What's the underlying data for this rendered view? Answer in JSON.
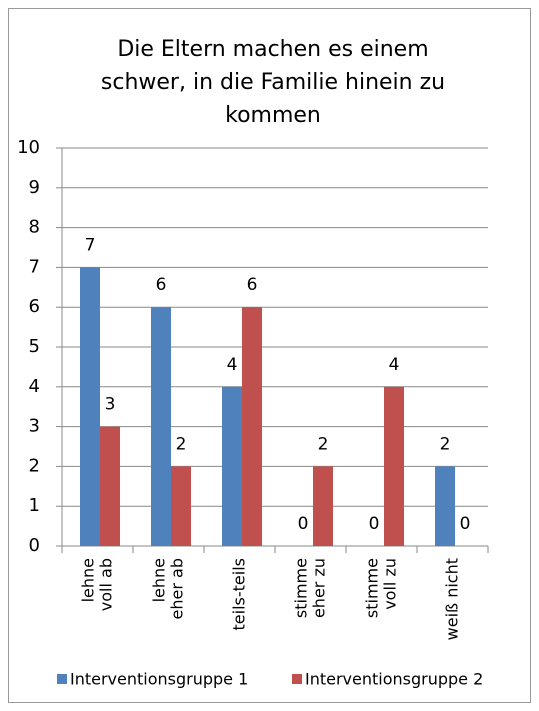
{
  "chart_data": {
    "type": "bar",
    "title": "Die Eltern machen es einem schwer, in die Familie hinein zu kommen",
    "categories": [
      "lehne voll ab",
      "lehne eher ab",
      "teils-teils",
      "stimme eher zu",
      "stimme voll zu",
      "weiß nicht"
    ],
    "series": [
      {
        "name": "Interventionsgruppe 1",
        "color": "#4f81bd",
        "values": [
          7,
          6,
          4,
          0,
          0,
          2
        ]
      },
      {
        "name": "Interventionsgruppe 2",
        "color": "#c0504d",
        "values": [
          3,
          2,
          6,
          2,
          4,
          0
        ]
      }
    ],
    "ylim": [
      0,
      10
    ],
    "yticks": [
      0,
      1,
      2,
      3,
      4,
      5,
      6,
      7,
      8,
      9,
      10
    ],
    "grid": true,
    "legend": "bottom"
  }
}
